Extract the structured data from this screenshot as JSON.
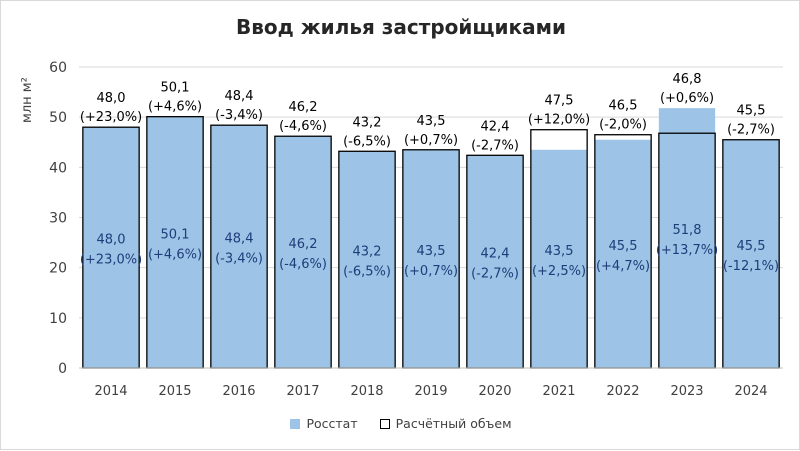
{
  "chart_data": {
    "type": "bar",
    "title": "Ввод жилья застройщиками",
    "ylabel": "млн м²",
    "ylim": [
      0,
      60
    ],
    "yticks": [
      0,
      10,
      20,
      30,
      40,
      50,
      60
    ],
    "grid": true,
    "legend_position": "bottom",
    "categories": [
      "2014",
      "2015",
      "2016",
      "2017",
      "2018",
      "2019",
      "2020",
      "2021",
      "2022",
      "2023",
      "2024"
    ],
    "series": [
      {
        "name": "Росстат",
        "style": "filled",
        "color": "#9dc3e6",
        "values": [
          48.0,
          50.1,
          48.4,
          46.2,
          43.2,
          43.5,
          42.4,
          43.5,
          45.5,
          51.8,
          45.5
        ],
        "labels": [
          "48,0",
          "50,1",
          "48,4",
          "46,2",
          "43,2",
          "43,5",
          "42,4",
          "43,5",
          "45,5",
          "51,8",
          "45,5"
        ],
        "changes": [
          "(+23,0%)",
          "(+4,6%)",
          "(-3,4%)",
          "(-4,6%)",
          "(-6,5%)",
          "(+0,7%)",
          "(-2,7%)",
          "(+2,5%)",
          "(+4,7%)",
          "(+13,7%)",
          "(-12,1%)"
        ]
      },
      {
        "name": "Расчётный объем",
        "style": "outline",
        "color": "#000000",
        "values": [
          48.0,
          50.1,
          48.4,
          46.2,
          43.2,
          43.5,
          42.4,
          47.5,
          46.5,
          46.8,
          45.5
        ],
        "labels": [
          "48,0",
          "50,1",
          "48,4",
          "46,2",
          "43,2",
          "43,5",
          "42,4",
          "47,5",
          "46,5",
          "46,8",
          "45,5"
        ],
        "changes": [
          "(+23,0%)",
          "(+4,6%)",
          "(-3,4%)",
          "(-4,6%)",
          "(-6,5%)",
          "(+0,7%)",
          "(-2,7%)",
          "(+12,0%)",
          "(-2,0%)",
          "(+0,6%)",
          "(-2,7%)"
        ]
      }
    ]
  },
  "colors": {
    "inside_label": "#1f3d7a",
    "outside_label": "#000000",
    "gridline": "#d9d9d9",
    "axis_text": "#404040"
  }
}
